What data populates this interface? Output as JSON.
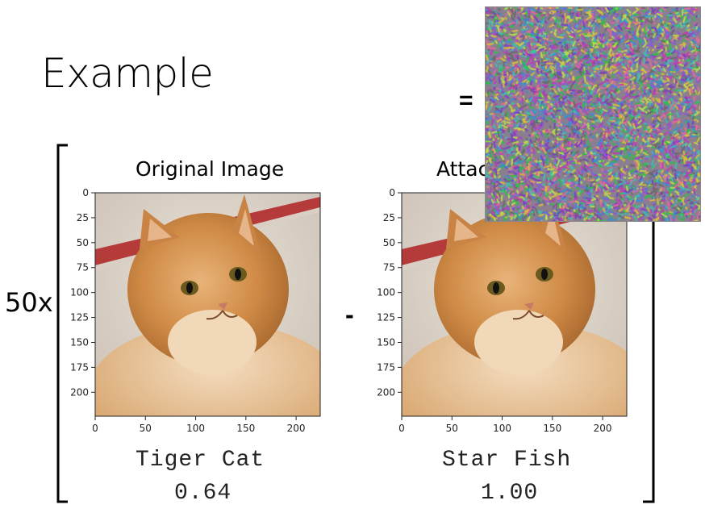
{
  "slide": {
    "title": "Example",
    "multiplier": "50x",
    "minus": "-",
    "equals": "="
  },
  "panels": [
    {
      "title": "Original Image",
      "label": "Tiger Cat",
      "score": "0.64",
      "image": "tabby-cat-photo"
    },
    {
      "title": "Attac",
      "label": "Star Fish",
      "score": "1.00",
      "image": "tabby-cat-photo"
    }
  ],
  "noise": {
    "image": "adversarial-noise-pattern"
  },
  "chart_data": [
    {
      "type": "image-plot",
      "title": "Original Image",
      "x_ticks": [
        "0",
        "50",
        "100",
        "150",
        "200"
      ],
      "y_ticks": [
        "0",
        "25",
        "50",
        "75",
        "100",
        "125",
        "150",
        "175",
        "200"
      ],
      "xlim": [
        0,
        224
      ],
      "ylim": [
        0,
        224
      ]
    },
    {
      "type": "image-plot",
      "title": "Attac",
      "x_ticks": [
        "0",
        "50",
        "100",
        "150",
        "200"
      ],
      "y_ticks": [
        "0",
        "25",
        "50",
        "75",
        "100",
        "125",
        "150",
        "175",
        "200"
      ],
      "xlim": [
        0,
        224
      ],
      "ylim": [
        0,
        224
      ]
    }
  ]
}
